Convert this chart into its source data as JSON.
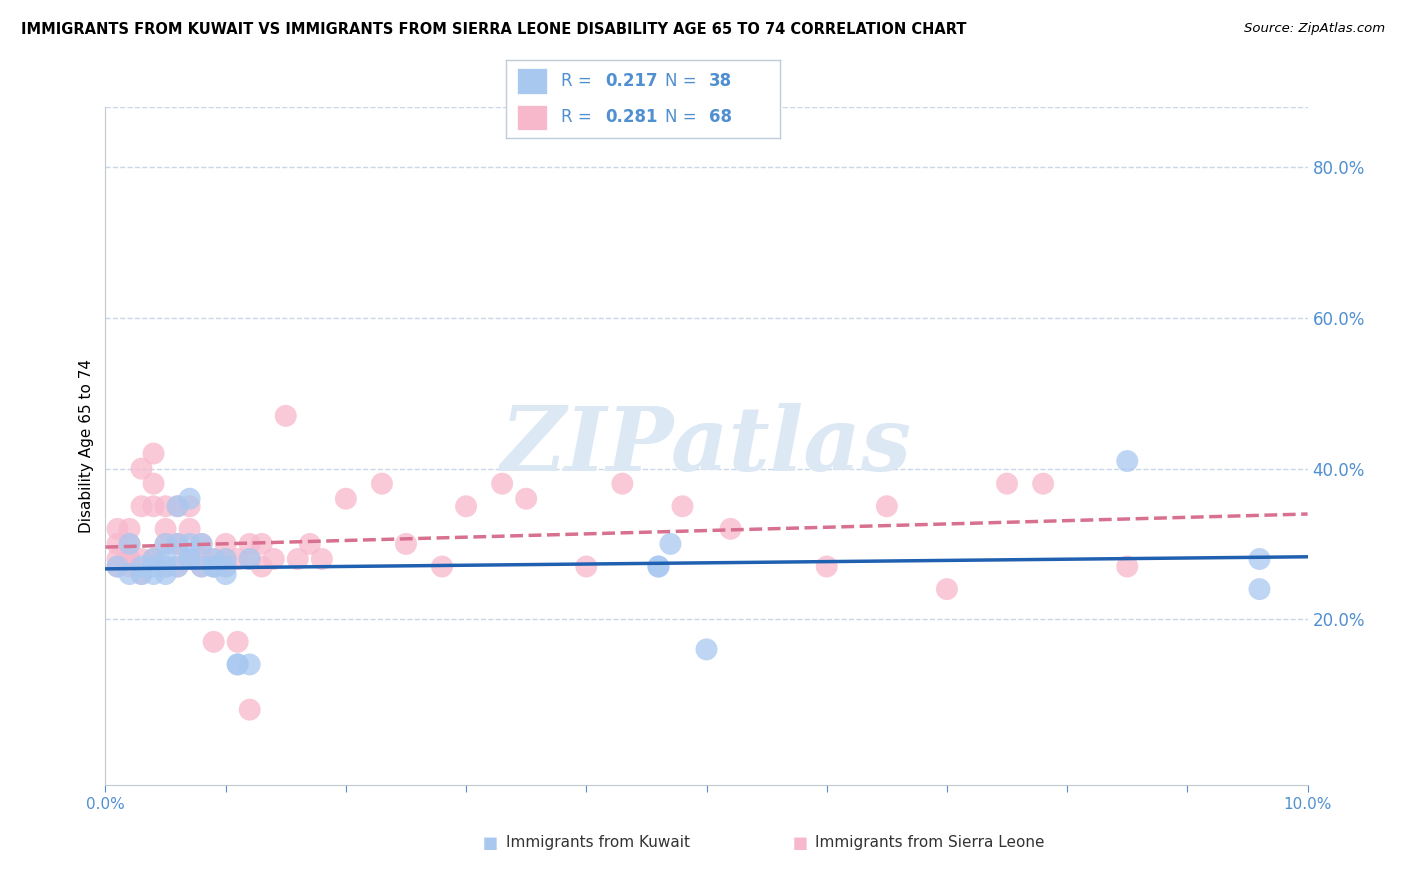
{
  "title": "IMMIGRANTS FROM KUWAIT VS IMMIGRANTS FROM SIERRA LEONE DISABILITY AGE 65 TO 74 CORRELATION CHART",
  "source": "Source: ZipAtlas.com",
  "ylabel_left": "Disability Age 65 to 74",
  "xlim": [
    0.0,
    0.1
  ],
  "ylim": [
    -0.02,
    0.88
  ],
  "yticks_right": [
    0.2,
    0.4,
    0.6,
    0.8
  ],
  "kuwait_color": "#a8c8f0",
  "sierra_leone_color": "#f7b8cc",
  "kuwait_line_color": "#2060b0",
  "sierra_leone_line_color": "#d87090",
  "tick_label_color": "#5090d0",
  "grid_color": "#c8d8e8",
  "watermark_color": "#dce8f4",
  "legend_text_color": "#5090d0",
  "bottom_label_color": "#333333",
  "kuwait_x": [
    0.001,
    0.002,
    0.002,
    0.003,
    0.003,
    0.004,
    0.004,
    0.004,
    0.005,
    0.005,
    0.005,
    0.005,
    0.006,
    0.006,
    0.006,
    0.007,
    0.007,
    0.007,
    0.007,
    0.008,
    0.008,
    0.009,
    0.009,
    0.009,
    0.01,
    0.01,
    0.01,
    0.011,
    0.011,
    0.012,
    0.012,
    0.046,
    0.046,
    0.047,
    0.05,
    0.085,
    0.096,
    0.096
  ],
  "kuwait_y": [
    0.27,
    0.26,
    0.3,
    0.26,
    0.27,
    0.26,
    0.27,
    0.28,
    0.28,
    0.26,
    0.27,
    0.3,
    0.27,
    0.3,
    0.35,
    0.28,
    0.3,
    0.28,
    0.36,
    0.27,
    0.3,
    0.27,
    0.27,
    0.28,
    0.27,
    0.26,
    0.28,
    0.14,
    0.14,
    0.14,
    0.28,
    0.27,
    0.27,
    0.3,
    0.16,
    0.41,
    0.24,
    0.28
  ],
  "sierra_leone_x": [
    0.001,
    0.001,
    0.001,
    0.001,
    0.002,
    0.002,
    0.002,
    0.002,
    0.002,
    0.003,
    0.003,
    0.003,
    0.003,
    0.004,
    0.004,
    0.004,
    0.004,
    0.004,
    0.005,
    0.005,
    0.005,
    0.005,
    0.006,
    0.006,
    0.006,
    0.006,
    0.007,
    0.007,
    0.007,
    0.007,
    0.008,
    0.008,
    0.008,
    0.009,
    0.009,
    0.009,
    0.01,
    0.01,
    0.01,
    0.011,
    0.011,
    0.012,
    0.012,
    0.012,
    0.013,
    0.013,
    0.014,
    0.015,
    0.016,
    0.017,
    0.018,
    0.02,
    0.023,
    0.025,
    0.028,
    0.03,
    0.033,
    0.035,
    0.04,
    0.043,
    0.048,
    0.052,
    0.06,
    0.065,
    0.07,
    0.075,
    0.078,
    0.085
  ],
  "sierra_leone_y": [
    0.3,
    0.28,
    0.27,
    0.32,
    0.27,
    0.28,
    0.3,
    0.28,
    0.32,
    0.26,
    0.28,
    0.35,
    0.4,
    0.28,
    0.35,
    0.38,
    0.42,
    0.28,
    0.27,
    0.35,
    0.3,
    0.32,
    0.27,
    0.3,
    0.35,
    0.3,
    0.28,
    0.32,
    0.28,
    0.35,
    0.27,
    0.28,
    0.3,
    0.27,
    0.28,
    0.17,
    0.3,
    0.27,
    0.28,
    0.28,
    0.17,
    0.08,
    0.28,
    0.3,
    0.3,
    0.27,
    0.28,
    0.47,
    0.28,
    0.3,
    0.28,
    0.36,
    0.38,
    0.3,
    0.27,
    0.35,
    0.38,
    0.36,
    0.27,
    0.38,
    0.35,
    0.32,
    0.27,
    0.35,
    0.24,
    0.38,
    0.38,
    0.27
  ]
}
